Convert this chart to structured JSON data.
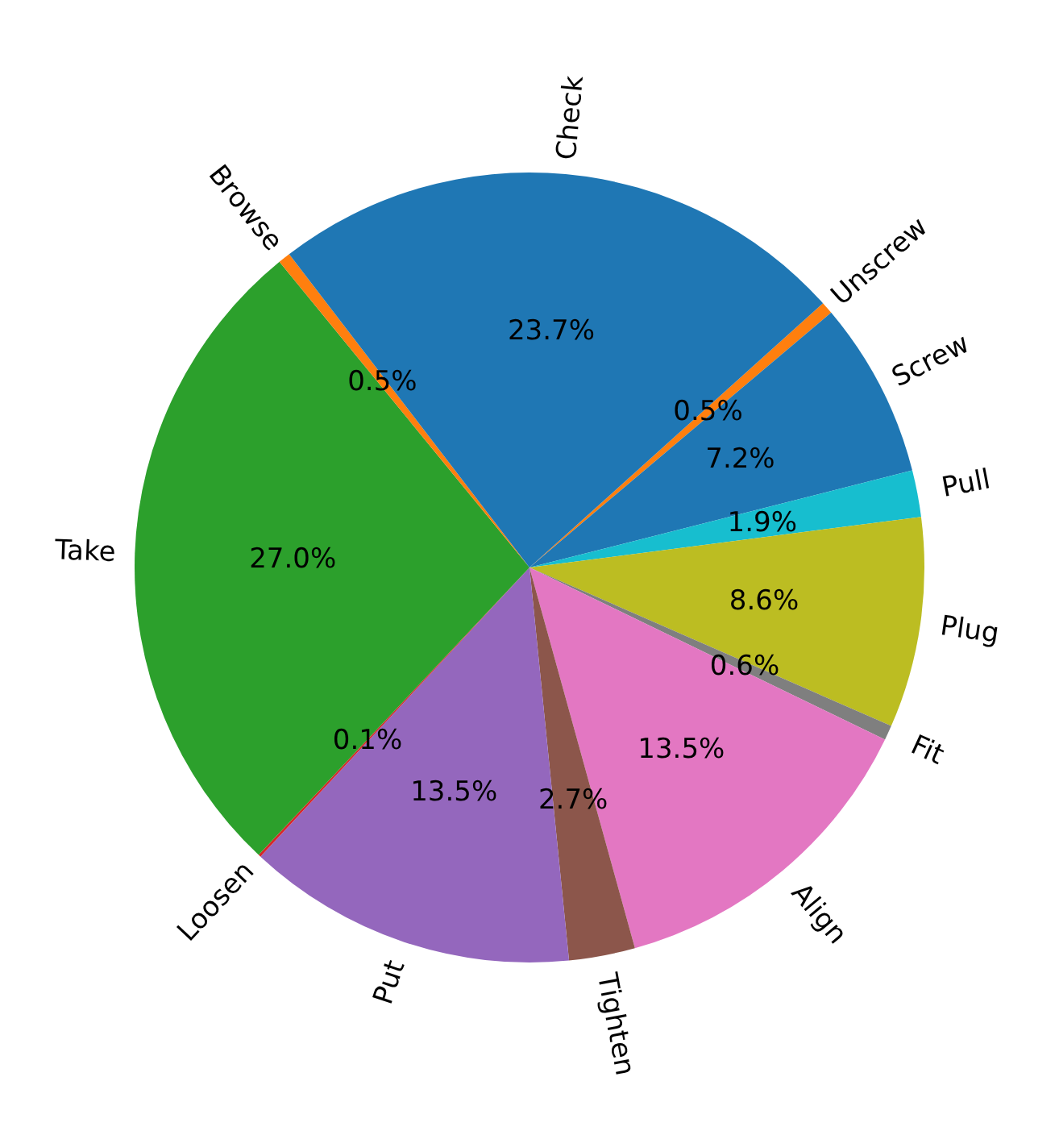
{
  "chart_data": {
    "type": "pie",
    "categories": [
      "Check",
      "Browse",
      "Take",
      "Loosen",
      "Put",
      "Tighten",
      "Align",
      "Fit",
      "Plug",
      "Pull",
      "Screw",
      "Unscrew"
    ],
    "values": [
      23.7,
      0.5,
      27.0,
      0.1,
      13.5,
      2.7,
      13.5,
      0.6,
      8.6,
      1.9,
      7.2,
      0.5
    ],
    "colors": [
      "#1f77b4",
      "#ff7f0e",
      "#2ca02c",
      "#d62728",
      "#9467bd",
      "#8c564b",
      "#e377c2",
      "#7f7f7f",
      "#bcbd22",
      "#17becf",
      "#1f77b4",
      "#ff7f0e"
    ],
    "value_labels": [
      "23.7%",
      "0.5%",
      "27.0%",
      "0.1%",
      "13.5%",
      "2.7%",
      "13.5%",
      "0.6%",
      "8.6%",
      "1.9%",
      "7.2%",
      "0.5%"
    ]
  }
}
